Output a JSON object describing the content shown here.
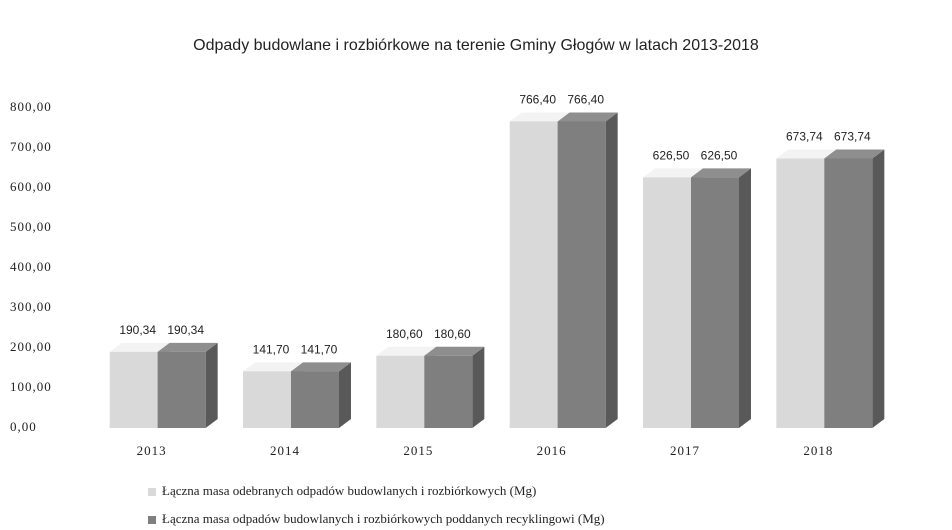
{
  "chart_data": {
    "type": "bar3d",
    "title": "Odpady budowlane i rozbiórkowe na terenie Gminy Głogów w latach 2013-2018",
    "categories": [
      "2013",
      "2014",
      "2015",
      "2016",
      "2017",
      "2018"
    ],
    "series": [
      {
        "name": "Łączna masa odebranych odpadów budowlanych i rozbiórkowych (Mg)",
        "color": "#d9d9d9",
        "values": [
          190.34,
          141.7,
          180.6,
          766.4,
          626.5,
          673.74
        ],
        "value_labels": [
          "190,34",
          "141,70",
          "180,60",
          "766,40",
          "626,50",
          "673,74"
        ]
      },
      {
        "name": "Łączna masa odpadów budowlanych i rozbiórkowych poddanych recyklingowi (Mg)",
        "color": "#7f7f7f",
        "values": [
          190.34,
          141.7,
          180.6,
          766.4,
          626.5,
          673.74
        ],
        "value_labels": [
          "190,34",
          "141,70",
          "180,60",
          "766,40",
          "626,50",
          "673,74"
        ]
      }
    ],
    "ylim": [
      0,
      800
    ],
    "yticks": [
      {
        "value": 0,
        "label": "0,00"
      },
      {
        "value": 100,
        "label": "100,00"
      },
      {
        "value": 200,
        "label": "200,00"
      },
      {
        "value": 300,
        "label": "300,00"
      },
      {
        "value": 400,
        "label": "400,00"
      },
      {
        "value": 500,
        "label": "500,00"
      },
      {
        "value": 600,
        "label": "600,00"
      },
      {
        "value": 700,
        "label": "700,00"
      },
      {
        "value": 800,
        "label": "800,00"
      }
    ],
    "legend": "bottom"
  }
}
